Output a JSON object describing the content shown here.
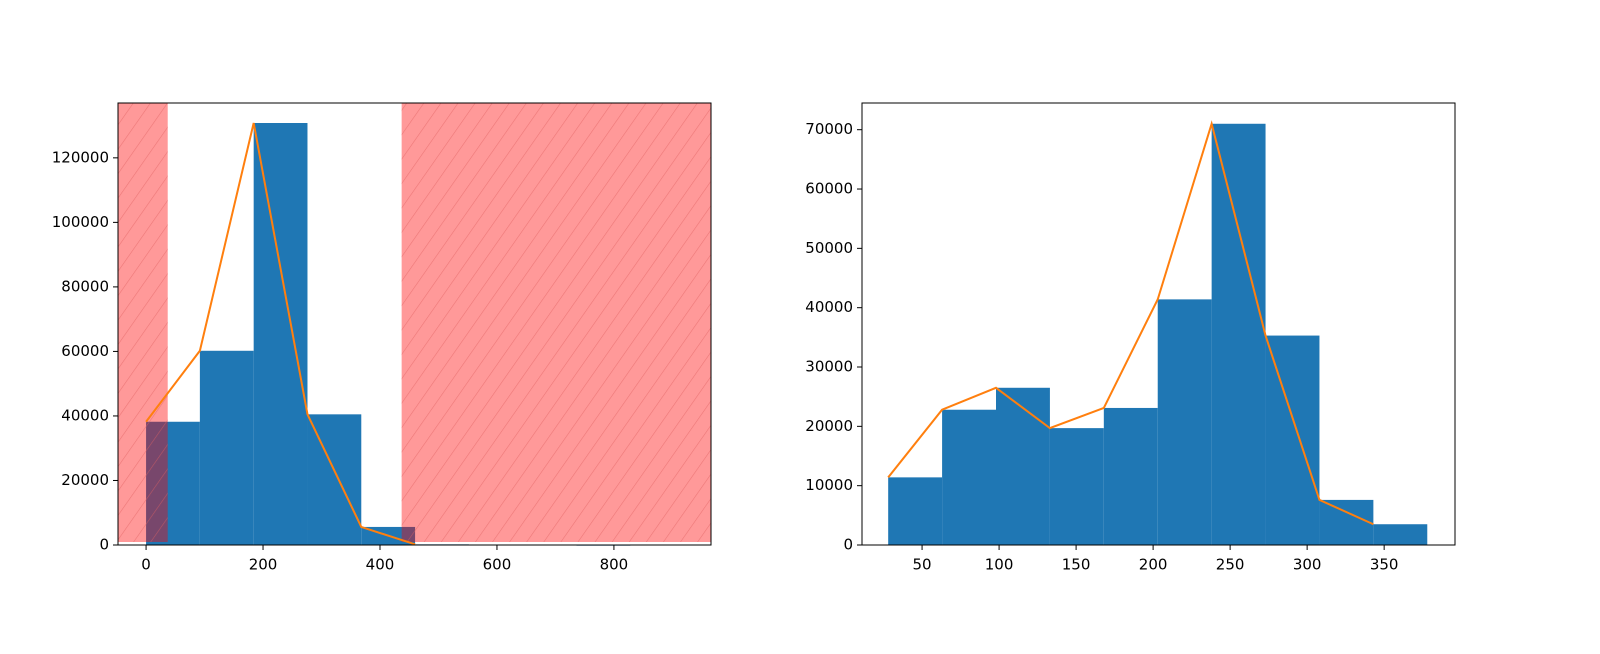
{
  "chart_data": [
    {
      "type": "histogram",
      "bins": [
        0,
        92,
        184,
        276,
        368,
        460,
        552,
        644,
        736,
        828
      ],
      "values": [
        38200,
        60200,
        130800,
        40500,
        5600,
        200,
        150,
        100,
        50
      ],
      "color": "#1f77b4",
      "line": {
        "x": [
          0,
          92,
          184,
          276,
          368,
          460
        ],
        "values": [
          38200,
          60200,
          130800,
          40500,
          5600,
          200
        ],
        "color": "#ff7f0e"
      },
      "spans": [
        [
          -48,
          37
        ],
        [
          437,
          966
        ]
      ],
      "span_color": "#ff0000",
      "xlim": [
        -48,
        966
      ],
      "ylim": [
        0,
        137000
      ],
      "xticks": [
        0,
        200,
        400,
        600,
        800
      ],
      "yticks": [
        0,
        20000,
        40000,
        60000,
        80000,
        100000,
        120000
      ]
    },
    {
      "type": "histogram",
      "bins": [
        28,
        63,
        98,
        133,
        168,
        203,
        238,
        273,
        308,
        343,
        378
      ],
      "values": [
        11400,
        22800,
        26500,
        19700,
        23100,
        41400,
        71000,
        35300,
        7600,
        3500
      ],
      "color": "#1f77b4",
      "line": {
        "x": [
          28,
          63,
          98,
          133,
          168,
          203,
          238,
          273,
          308,
          343
        ],
        "values": [
          11400,
          22800,
          26500,
          19700,
          23100,
          41400,
          71000,
          35300,
          7600,
          3500
        ],
        "color": "#ff7f0e"
      },
      "xlim": [
        11,
        396
      ],
      "ylim": [
        0,
        74500
      ],
      "xticks": [
        50,
        100,
        150,
        200,
        250,
        300,
        350
      ],
      "yticks": [
        0,
        10000,
        20000,
        30000,
        40000,
        50000,
        60000,
        70000
      ]
    }
  ]
}
